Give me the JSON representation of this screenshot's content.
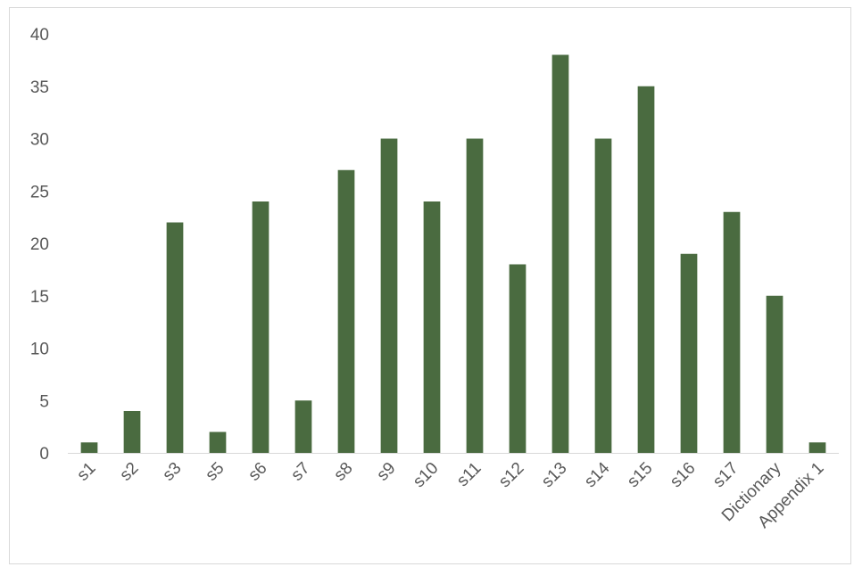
{
  "chart_data": {
    "type": "bar",
    "title": "",
    "xlabel": "",
    "ylabel": "",
    "ylim": [
      0,
      40
    ],
    "yticks": [
      0,
      5,
      10,
      15,
      20,
      25,
      30,
      35,
      40
    ],
    "grid": false,
    "legend": "none",
    "bar_color": "#4a6b40",
    "categories": [
      "s1",
      "s2",
      "s3",
      "s5",
      "s6",
      "s7",
      "s8",
      "s9",
      "s10",
      "s11",
      "s12",
      "s13",
      "s14",
      "s15",
      "s16",
      "s17",
      "Dictionary",
      "Appendix 1"
    ],
    "values": [
      1,
      4,
      22,
      2,
      24,
      5,
      27,
      30,
      24,
      30,
      18,
      38,
      30,
      35,
      19,
      23,
      15,
      1
    ]
  }
}
